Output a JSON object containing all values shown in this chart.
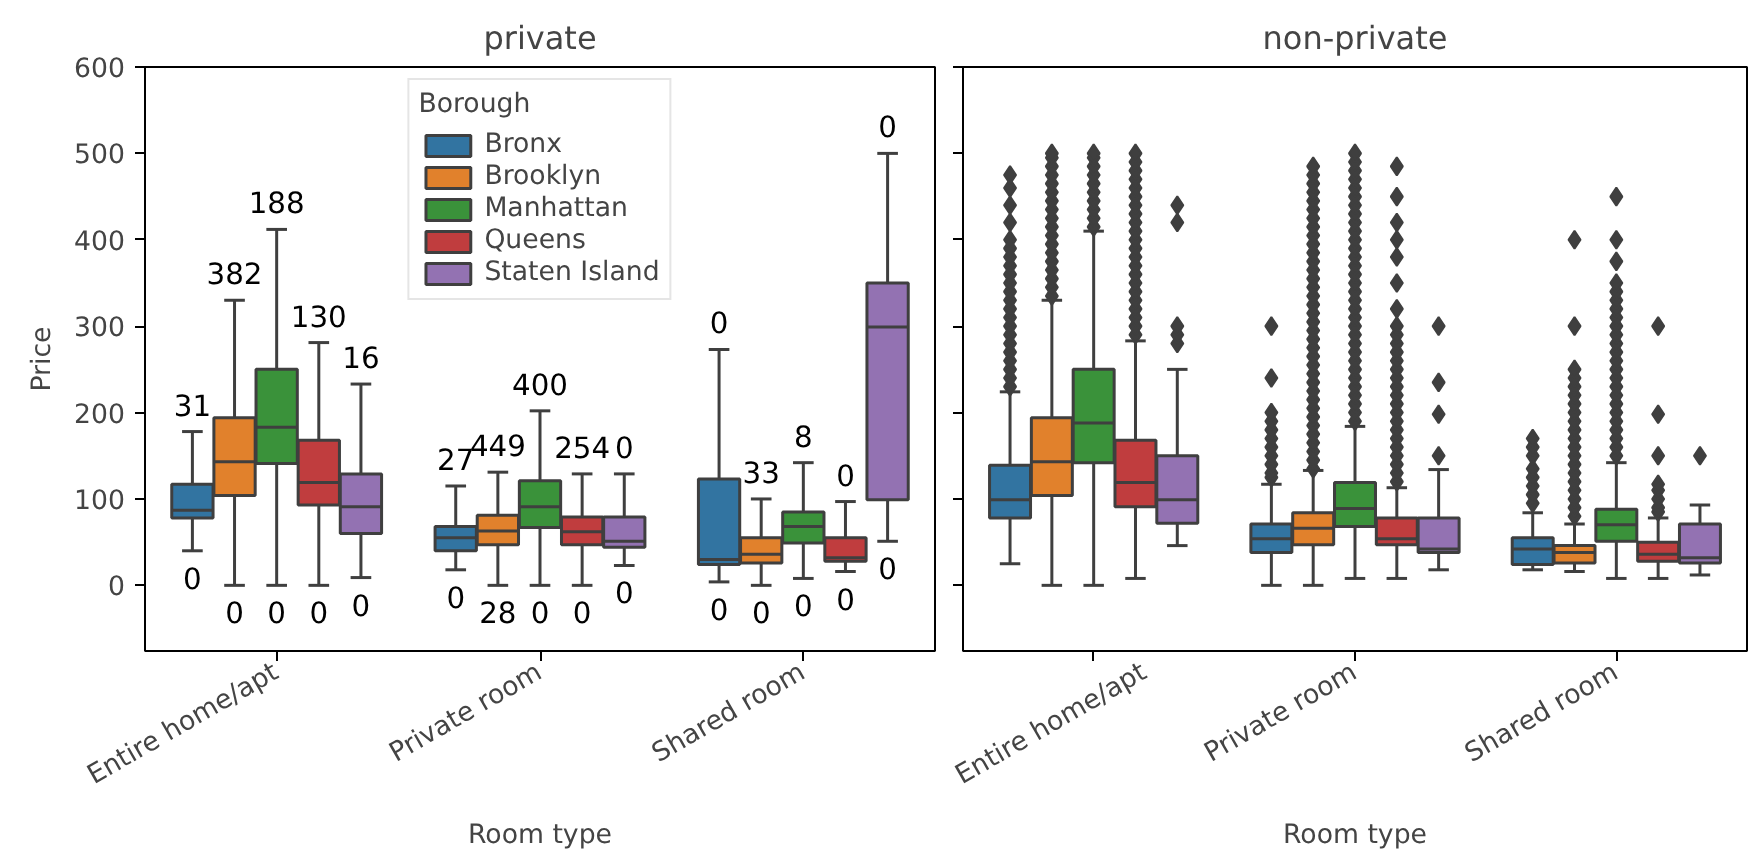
{
  "chart_data": [
    {
      "type": "box",
      "title": "private",
      "xlabel": "Room type",
      "ylabel": "Price",
      "legend_title": "Borough",
      "legend": "top",
      "grid": false,
      "categories": [
        "Entire home/apt",
        "Private room",
        "Shared room"
      ],
      "ylim": [
        -76,
        600
      ],
      "yticks": [
        0,
        100,
        200,
        300,
        400,
        500,
        600
      ],
      "series": [
        {
          "name": "Bronx",
          "color": "#3274a1",
          "boxes": [
            {
              "low": 40,
              "q1": 78,
              "median": 87,
              "q3": 117,
              "high": 178
            },
            {
              "low": 18,
              "q1": 40,
              "median": 55,
              "q3": 68,
              "high": 115
            },
            {
              "low": 4,
              "q1": 24,
              "median": 30,
              "q3": 123,
              "high": 273
            }
          ]
        },
        {
          "name": "Brooklyn",
          "color": "#e1812c",
          "boxes": [
            {
              "low": 0,
              "q1": 104,
              "median": 143,
              "q3": 194,
              "high": 330
            },
            {
              "low": 0,
              "q1": 47,
              "median": 63,
              "q3": 81,
              "high": 131
            },
            {
              "low": 0,
              "q1": 26,
              "median": 36,
              "q3": 55,
              "high": 100
            }
          ]
        },
        {
          "name": "Manhattan",
          "color": "#3a923a",
          "boxes": [
            {
              "low": 0,
              "q1": 141,
              "median": 183,
              "q3": 250,
              "high": 412
            },
            {
              "low": 0,
              "q1": 67,
              "median": 91,
              "q3": 121,
              "high": 202
            },
            {
              "low": 8,
              "q1": 49,
              "median": 68,
              "q3": 85,
              "high": 142
            }
          ]
        },
        {
          "name": "Queens",
          "color": "#c03d3e",
          "boxes": [
            {
              "low": 0,
              "q1": 93,
              "median": 119,
              "q3": 168,
              "high": 281
            },
            {
              "low": 0,
              "q1": 47,
              "median": 62,
              "q3": 79,
              "high": 129
            },
            {
              "low": 16,
              "q1": 28,
              "median": 32,
              "q3": 55,
              "high": 97
            }
          ]
        },
        {
          "name": "Staten Island",
          "color": "#9372b2",
          "boxes": [
            {
              "low": 9,
              "q1": 60,
              "median": 91,
              "q3": 129,
              "high": 233
            },
            {
              "low": 23,
              "q1": 44,
              "median": 51,
              "q3": 79,
              "high": 129
            },
            {
              "low": 51,
              "q1": 99,
              "median": 299,
              "q3": 350,
              "high": 500
            }
          ]
        }
      ],
      "annotations": [
        "31",
        "0",
        "382",
        "0",
        "188",
        "0",
        "130",
        "0",
        "16",
        "0",
        "27",
        "0",
        "449",
        "28",
        "400",
        "0",
        "254",
        "0",
        "0",
        "0",
        "0",
        "0",
        "33",
        "0",
        "8",
        "0",
        "0",
        "0",
        "0",
        "0"
      ]
    },
    {
      "type": "box",
      "title": "non-private",
      "xlabel": "Room type",
      "legend": false,
      "grid": false,
      "tick_labels": "x",
      "categories": [
        "Entire home/apt",
        "Private room",
        "Shared room"
      ],
      "ylim": [
        -76,
        600
      ],
      "yticks": [
        0,
        100,
        200,
        300,
        400,
        500,
        600
      ],
      "series": [
        {
          "color": "#3274a1",
          "boxes": [
            {
              "low": 25,
              "q1": 78,
              "median": 99,
              "q3": 139,
              "high": 224,
              "outliers": [
                230,
                240,
                250,
                260,
                270,
                280,
                290,
                300,
                310,
                320,
                330,
                340,
                350,
                360,
                370,
                380,
                390,
                400,
                420,
                440,
                460,
                475
              ]
            },
            {
              "low": 0,
              "q1": 38,
              "median": 54,
              "q3": 71,
              "high": 117,
              "outliers": [
                125,
                130,
                140,
                150,
                160,
                170,
                180,
                190,
                200,
                240,
                300
              ]
            },
            {
              "low": 18,
              "q1": 24,
              "median": 42,
              "q3": 55,
              "high": 84,
              "outliers": [
                95,
                105,
                115,
                125,
                135,
                150,
                160,
                170
              ]
            }
          ]
        },
        {
          "color": "#e1812c",
          "boxes": [
            {
              "low": 0,
              "q1": 104,
              "median": 143,
              "q3": 194,
              "high": 330,
              "outliers": [
                335,
                345,
                355,
                365,
                375,
                385,
                395,
                405,
                415,
                425,
                435,
                445,
                455,
                465,
                475,
                485,
                495,
                500
              ]
            },
            {
              "low": 0,
              "q1": 47,
              "median": 66,
              "q3": 84,
              "high": 133,
              "outliers": [
                135,
                145,
                155,
                165,
                175,
                185,
                195,
                205,
                215,
                225,
                235,
                245,
                255,
                265,
                275,
                285,
                295,
                305,
                315,
                325,
                335,
                345,
                355,
                365,
                375,
                385,
                395,
                405,
                415,
                425,
                435,
                445,
                455,
                465,
                475,
                485
              ]
            },
            {
              "low": 16,
              "q1": 26,
              "median": 38,
              "q3": 46,
              "high": 71,
              "outliers": [
                80,
                90,
                100,
                110,
                120,
                130,
                140,
                150,
                160,
                170,
                180,
                190,
                200,
                210,
                220,
                230,
                240,
                250,
                300,
                400
              ]
            }
          ]
        },
        {
          "color": "#3a923a",
          "boxes": [
            {
              "low": 0,
              "q1": 142,
              "median": 188,
              "q3": 250,
              "high": 410,
              "outliers": [
                415,
                425,
                435,
                445,
                455,
                465,
                475,
                485,
                495,
                500
              ]
            },
            {
              "low": 8,
              "q1": 68,
              "median": 89,
              "q3": 119,
              "high": 184,
              "outliers": [
                190,
                200,
                210,
                220,
                230,
                240,
                250,
                260,
                270,
                280,
                290,
                300,
                310,
                320,
                330,
                340,
                350,
                360,
                370,
                380,
                390,
                400,
                410,
                420,
                430,
                440,
                450,
                460,
                470,
                480,
                490,
                500
              ]
            },
            {
              "low": 8,
              "q1": 51,
              "median": 70,
              "q3": 88,
              "high": 142,
              "outliers": [
                150,
                160,
                170,
                180,
                190,
                200,
                210,
                220,
                230,
                240,
                250,
                260,
                270,
                280,
                290,
                300,
                310,
                320,
                330,
                340,
                350,
                375,
                400,
                450
              ]
            }
          ]
        },
        {
          "color": "#c03d3e",
          "boxes": [
            {
              "low": 8,
              "q1": 91,
              "median": 119,
              "q3": 168,
              "high": 283,
              "outliers": [
                290,
                300,
                310,
                320,
                330,
                340,
                350,
                360,
                370,
                380,
                390,
                400,
                410,
                420,
                430,
                440,
                450,
                460,
                470,
                480,
                490,
                500
              ]
            },
            {
              "low": 8,
              "q1": 47,
              "median": 54,
              "q3": 78,
              "high": 113,
              "outliers": [
                120,
                130,
                140,
                150,
                160,
                170,
                180,
                190,
                200,
                210,
                220,
                230,
                240,
                250,
                260,
                270,
                280,
                290,
                300,
                320,
                350,
                380,
                400,
                420,
                450,
                485
              ]
            },
            {
              "low": 8,
              "q1": 28,
              "median": 36,
              "q3": 50,
              "high": 78,
              "outliers": [
                85,
                90,
                100,
                110,
                117,
                150,
                198,
                300
              ]
            }
          ]
        },
        {
          "color": "#9372b2",
          "boxes": [
            {
              "low": 46,
              "q1": 72,
              "median": 99,
              "q3": 150,
              "high": 250,
              "outliers": [
                280,
                290,
                300,
                420,
                440
              ]
            },
            {
              "low": 18,
              "q1": 38,
              "median": 42,
              "q3": 78,
              "high": 134,
              "outliers": [
                150,
                198,
                235,
                300
              ]
            },
            {
              "low": 12,
              "q1": 26,
              "median": 32,
              "q3": 71,
              "high": 93,
              "outliers": [
                150
              ]
            }
          ]
        }
      ]
    }
  ]
}
